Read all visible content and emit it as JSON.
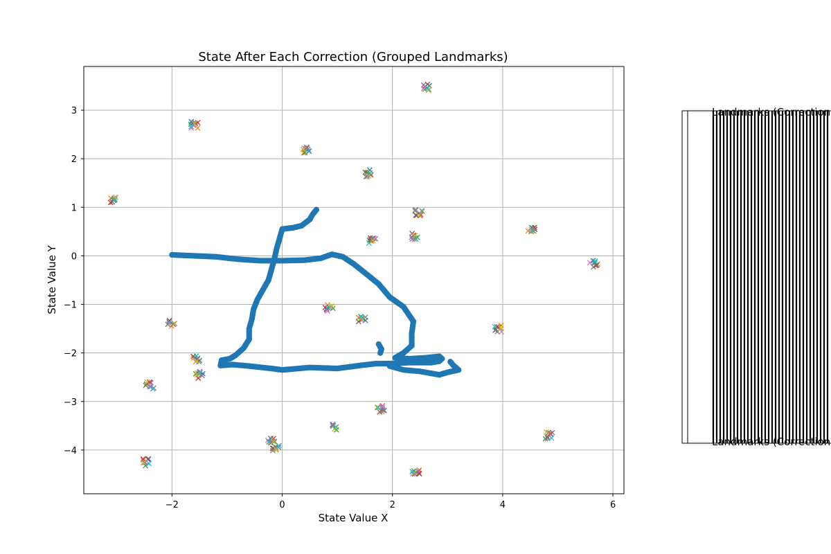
{
  "chart_data": {
    "type": "scatter",
    "title": "State After Each Correction (Grouped Landmarks)",
    "xlabel": "State Value X",
    "ylabel": "State Value Y",
    "xlim": [
      -3.6,
      6.2
    ],
    "ylim": [
      -4.9,
      3.9
    ],
    "xticks": [
      -2,
      0,
      2,
      4,
      6
    ],
    "yticks": [
      3,
      2,
      1,
      0,
      -1,
      -2,
      -3,
      -4
    ],
    "grid": true,
    "legend_placement": "right, outside plot (clipped)",
    "legend_label_top": "Landmarks (Correction ",
    "legend_label_bottom": "Landmarks (Correction ",
    "trajectory_color": "#1f77b4",
    "landmark_colors": [
      "#1f77b4",
      "#ff7f0e",
      "#2ca02c",
      "#d62728",
      "#9467bd",
      "#8c564b",
      "#e377c2",
      "#7f7f7f",
      "#bcbd22",
      "#17becf"
    ],
    "trajectory_path": [
      [
        -2.0,
        0.02
      ],
      [
        -1.6,
        0.0
      ],
      [
        -1.2,
        -0.02
      ],
      [
        -0.8,
        -0.07
      ],
      [
        -0.4,
        -0.1
      ],
      [
        0.0,
        -0.1
      ],
      [
        0.4,
        -0.09
      ],
      [
        0.7,
        -0.05
      ],
      [
        0.9,
        0.03
      ],
      [
        1.1,
        -0.02
      ],
      [
        1.3,
        -0.17
      ],
      [
        1.5,
        -0.35
      ],
      [
        1.75,
        -0.58
      ],
      [
        1.95,
        -0.85
      ],
      [
        2.2,
        -1.05
      ],
      [
        2.38,
        -1.35
      ],
      [
        2.35,
        -1.6
      ],
      [
        2.35,
        -1.85
      ],
      [
        2.2,
        -2.0
      ],
      [
        2.05,
        -2.1
      ],
      [
        2.3,
        -2.12
      ],
      [
        2.6,
        -2.1
      ],
      [
        2.85,
        -2.07
      ],
      [
        2.9,
        -2.12
      ],
      [
        2.85,
        -2.17
      ],
      [
        2.7,
        -2.2
      ],
      [
        2.3,
        -2.2
      ],
      [
        1.95,
        -2.22
      ],
      [
        1.7,
        -2.22
      ],
      [
        1.4,
        -2.26
      ],
      [
        1.0,
        -2.32
      ],
      [
        0.5,
        -2.3
      ],
      [
        0.2,
        -2.33
      ],
      [
        0.0,
        -2.35
      ],
      [
        -0.2,
        -2.32
      ],
      [
        -0.6,
        -2.27
      ],
      [
        -0.9,
        -2.24
      ],
      [
        -1.12,
        -2.26
      ],
      [
        -1.1,
        -2.15
      ],
      [
        -0.95,
        -2.12
      ],
      [
        -0.85,
        -2.05
      ],
      [
        -0.7,
        -1.9
      ],
      [
        -0.6,
        -1.72
      ],
      [
        -0.6,
        -1.5
      ],
      [
        -0.55,
        -1.3
      ],
      [
        -0.52,
        -1.1
      ],
      [
        -0.45,
        -0.9
      ],
      [
        -0.35,
        -0.7
      ],
      [
        -0.25,
        -0.5
      ],
      [
        -0.2,
        -0.3
      ],
      [
        -0.15,
        -0.1
      ],
      [
        -0.1,
        0.15
      ],
      [
        -0.05,
        0.35
      ],
      [
        0.0,
        0.55
      ],
      [
        0.2,
        0.58
      ],
      [
        0.35,
        0.62
      ],
      [
        0.5,
        0.75
      ],
      [
        0.55,
        0.85
      ],
      [
        0.62,
        0.95
      ]
    ],
    "trajectory_branches": [
      [
        [
          1.75,
          -1.82
        ],
        [
          1.8,
          -1.92
        ],
        [
          1.78,
          -2.0
        ]
      ],
      [
        [
          1.95,
          -2.27
        ],
        [
          2.2,
          -2.35
        ],
        [
          2.5,
          -2.38
        ],
        [
          2.7,
          -2.42
        ],
        [
          2.85,
          -2.45
        ],
        [
          3.0,
          -2.4
        ],
        [
          3.2,
          -2.35
        ],
        [
          3.1,
          -2.25
        ],
        [
          3.05,
          -2.18
        ]
      ]
    ],
    "landmarks": [
      [
        -3.05,
        1.15
      ],
      [
        -1.6,
        2.7
      ],
      [
        0.45,
        2.18
      ],
      [
        2.6,
        3.48
      ],
      [
        1.58,
        1.7
      ],
      [
        2.48,
        0.88
      ],
      [
        1.65,
        0.3
      ],
      [
        2.42,
        0.4
      ],
      [
        4.52,
        0.57
      ],
      [
        5.65,
        -0.16
      ],
      [
        0.85,
        -1.08
      ],
      [
        1.45,
        -1.32
      ],
      [
        3.92,
        -1.5
      ],
      [
        -2.02,
        -1.38
      ],
      [
        -1.55,
        -2.12
      ],
      [
        -1.5,
        -2.45
      ],
      [
        -2.4,
        -2.67
      ],
      [
        1.8,
        -3.15
      ],
      [
        0.98,
        -3.52
      ],
      [
        -0.2,
        -3.8
      ],
      [
        -0.1,
        -3.97
      ],
      [
        2.42,
        -4.45
      ],
      [
        4.85,
        -3.7
      ],
      [
        -2.45,
        -4.25
      ]
    ]
  }
}
